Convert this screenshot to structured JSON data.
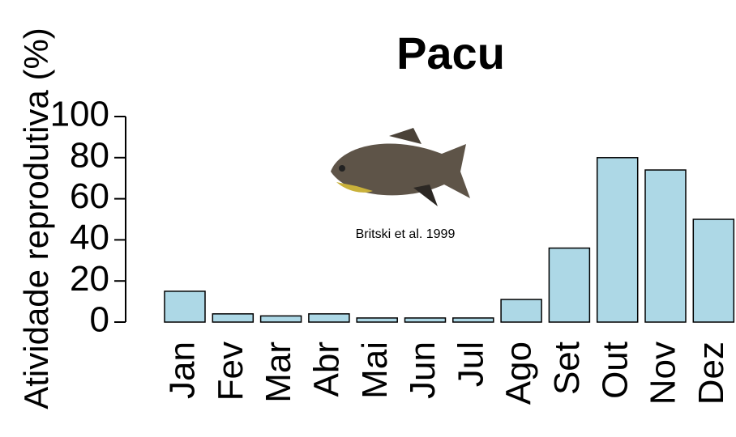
{
  "chart_data": {
    "type": "bar",
    "title": "Pacu",
    "y_label": "Atividade reprodutiva (%)",
    "annotation": "Britski et al. 1999",
    "categories": [
      "Jan",
      "Fev",
      "Mar",
      "Abr",
      "Mai",
      "Jun",
      "Jul",
      "Ago",
      "Set",
      "Out",
      "Nov",
      "Dez"
    ],
    "values": [
      15,
      4,
      3,
      4,
      2,
      2,
      2,
      11,
      36,
      80,
      74,
      50
    ],
    "color": "#add8e6",
    "ylim": [
      0,
      100
    ],
    "yticks": [
      0,
      20,
      40,
      60,
      80,
      100
    ],
    "grid": false
  }
}
